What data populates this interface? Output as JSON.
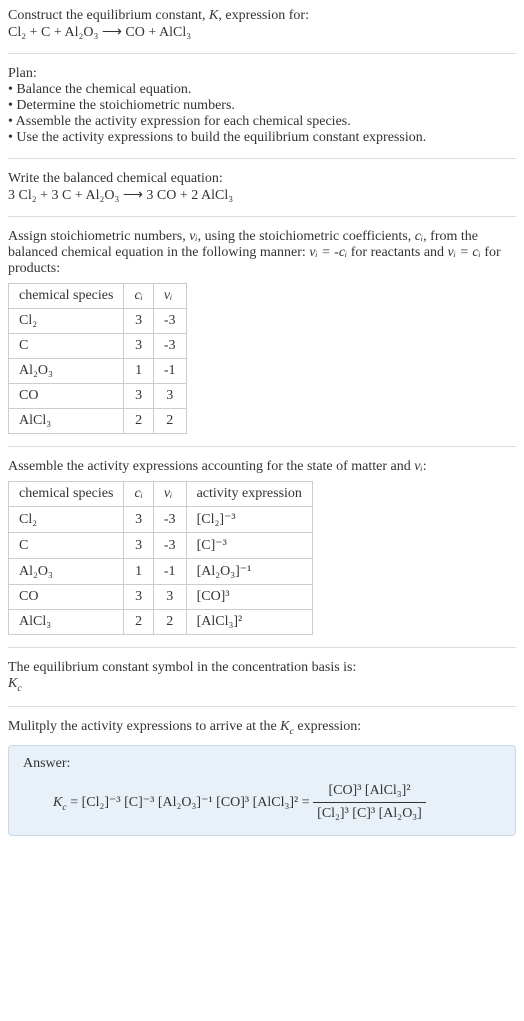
{
  "intro": {
    "line1": "Construct the equilibrium constant, ",
    "K": "K",
    "line1b": ", expression for:",
    "equation": "Cl₂ + C + Al₂O₃ ⟶ CO + AlCl₃"
  },
  "plan": {
    "title": "Plan:",
    "items": [
      "Balance the chemical equation.",
      "Determine the stoichiometric numbers.",
      "Assemble the activity expression for each chemical species.",
      "Use the activity expressions to build the equilibrium constant expression."
    ]
  },
  "balanced": {
    "title": "Write the balanced chemical equation:",
    "equation": "3 Cl₂ + 3 C + Al₂O₃ ⟶ 3 CO + 2 AlCl₃"
  },
  "assign": {
    "text1": "Assign stoichiometric numbers, ",
    "nu": "νᵢ",
    "text2": ", using the stoichiometric coefficients, ",
    "ci": "cᵢ",
    "text3": ", from the balanced chemical equation in the following manner: ",
    "eq1": "νᵢ = -cᵢ",
    "text4": " for reactants and ",
    "eq2": "νᵢ = cᵢ",
    "text5": " for products:"
  },
  "table1": {
    "headers": [
      "chemical species",
      "cᵢ",
      "νᵢ"
    ],
    "rows": [
      [
        "Cl₂",
        "3",
        "-3"
      ],
      [
        "C",
        "3",
        "-3"
      ],
      [
        "Al₂O₃",
        "1",
        "-1"
      ],
      [
        "CO",
        "3",
        "3"
      ],
      [
        "AlCl₃",
        "2",
        "2"
      ]
    ]
  },
  "assemble": {
    "text1": "Assemble the activity expressions accounting for the state of matter and ",
    "nu": "νᵢ",
    "text2": ":"
  },
  "table2": {
    "headers": [
      "chemical species",
      "cᵢ",
      "νᵢ",
      "activity expression"
    ],
    "rows": [
      [
        "Cl₂",
        "3",
        "-3",
        "[Cl₂]⁻³"
      ],
      [
        "C",
        "3",
        "-3",
        "[C]⁻³"
      ],
      [
        "Al₂O₃",
        "1",
        "-1",
        "[Al₂O₃]⁻¹"
      ],
      [
        "CO",
        "3",
        "3",
        "[CO]³"
      ],
      [
        "AlCl₃",
        "2",
        "2",
        "[AlCl₃]²"
      ]
    ]
  },
  "symbol": {
    "text": "The equilibrium constant symbol in the concentration basis is:",
    "kc": "K_c"
  },
  "multiply": {
    "text1": "Mulitply the activity expressions to arrive at the ",
    "kc": "K_c",
    "text2": " expression:"
  },
  "answer": {
    "label": "Answer:",
    "lhs": "K_c = [Cl₂]⁻³ [C]⁻³ [Al₂O₃]⁻¹ [CO]³ [AlCl₃]² = ",
    "num": "[CO]³ [AlCl₃]²",
    "den": "[Cl₂]³ [C]³ [Al₂O₃]"
  }
}
